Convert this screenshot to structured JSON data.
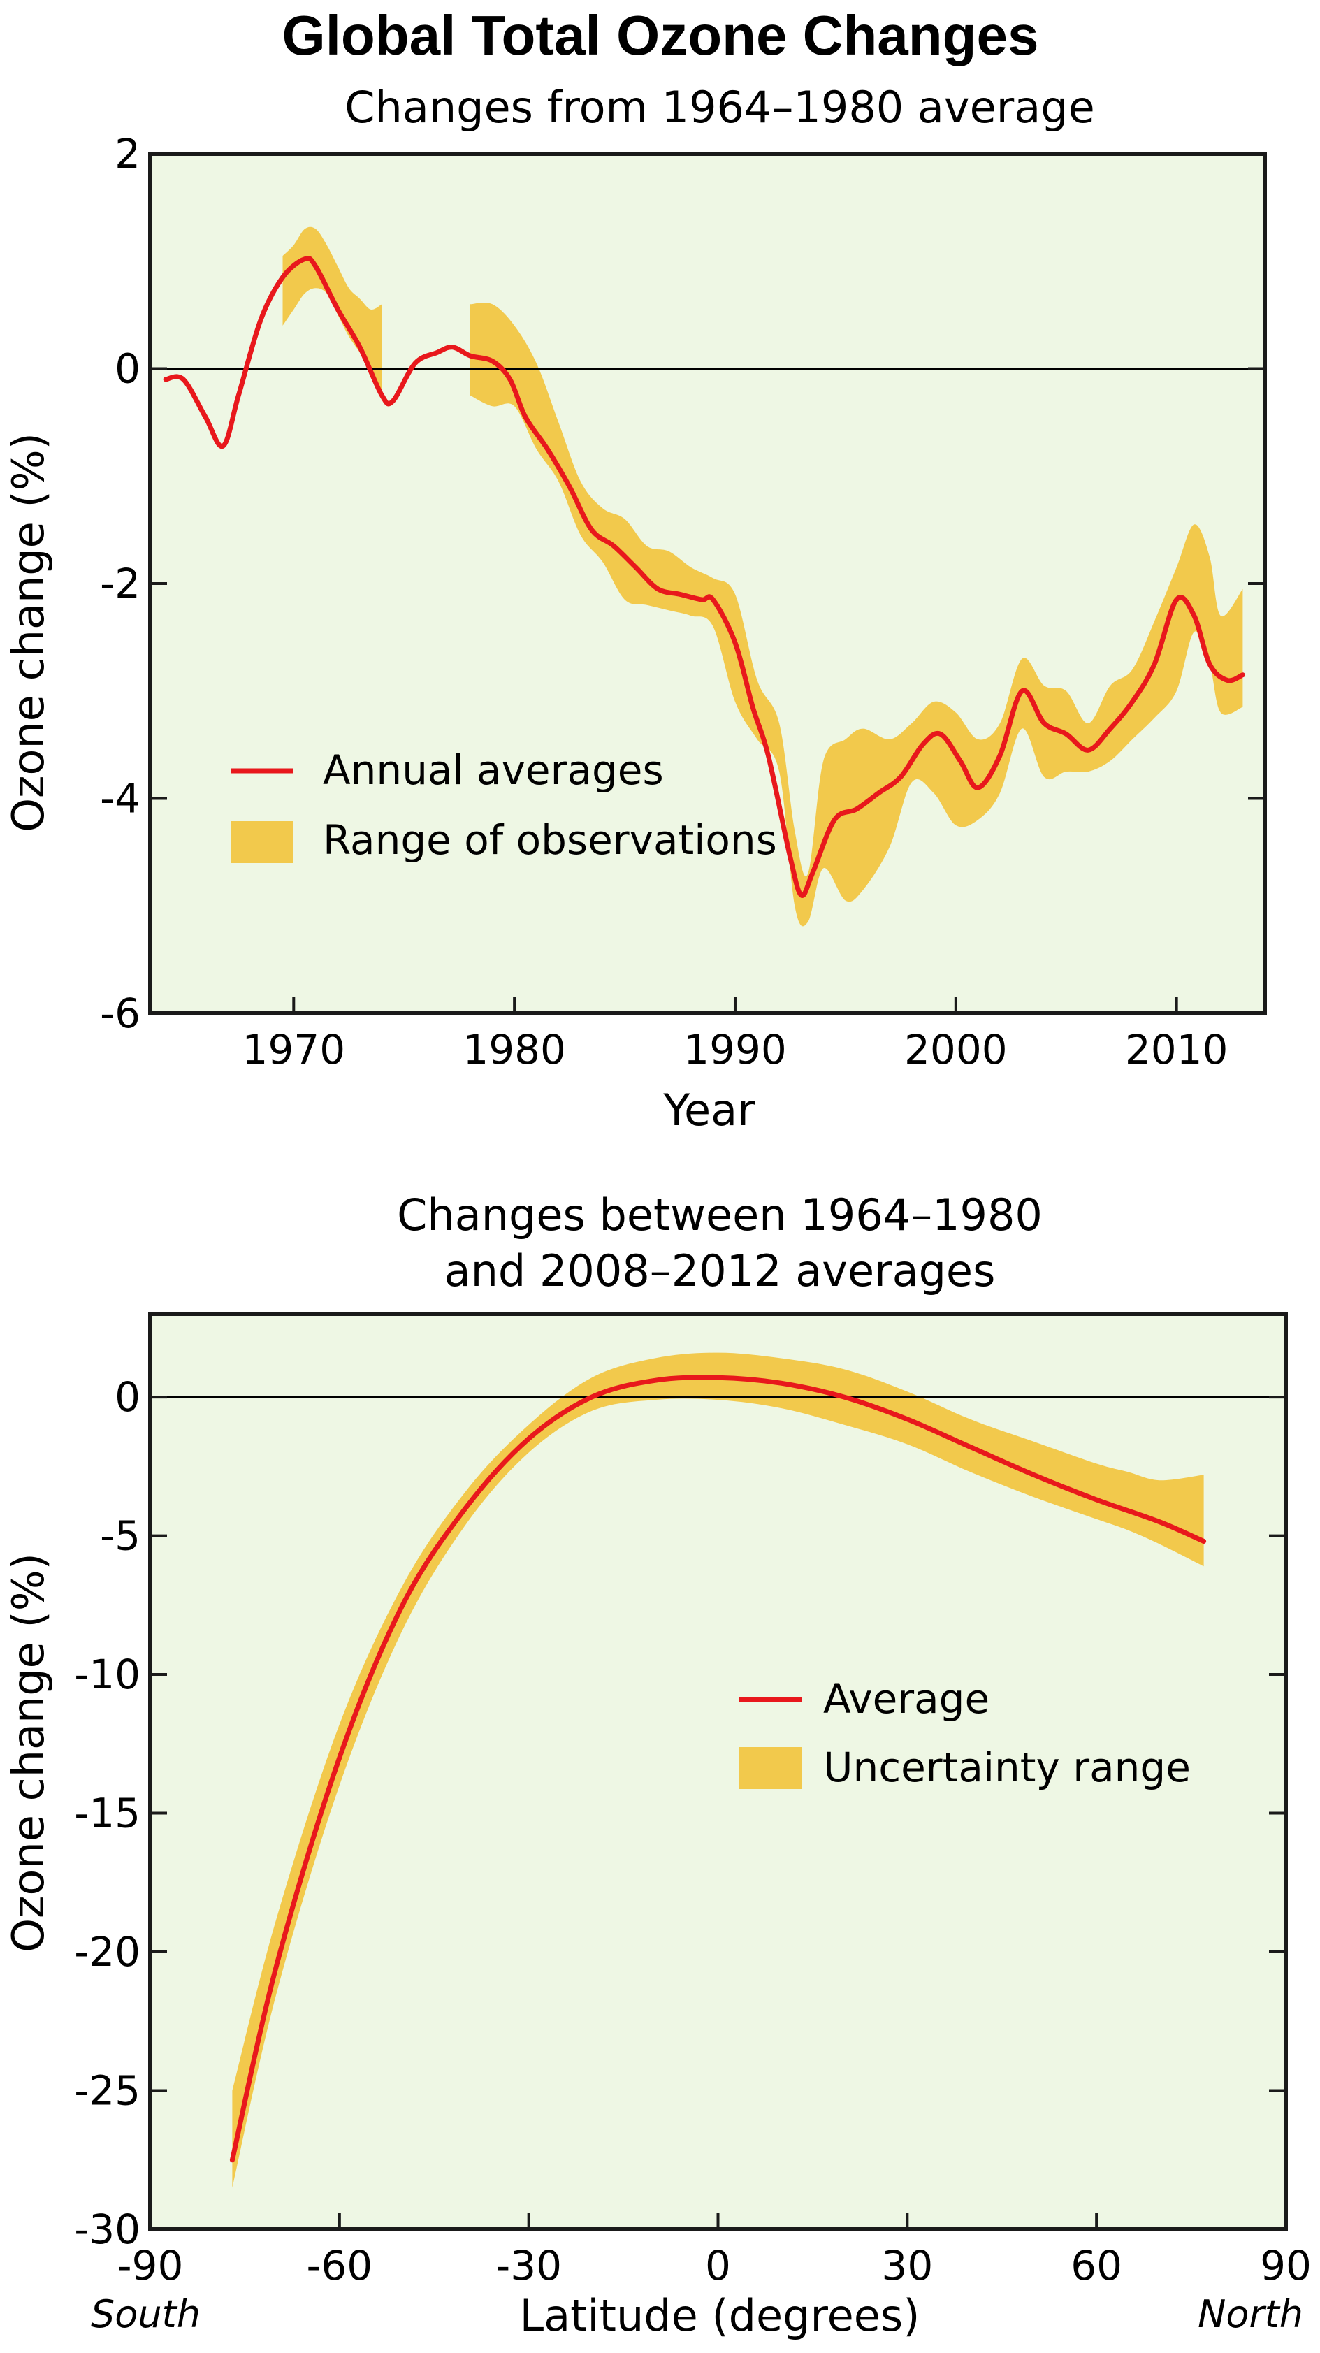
{
  "figure_title": "Global Total Ozone Changes",
  "colors": {
    "background": "#ffffff",
    "plot_bg": "#eef7e4",
    "line": "#e8181c",
    "band": "#f2c94c",
    "frame": "#1a1a1a"
  },
  "chart_data": [
    {
      "type": "line",
      "title": "Changes from 1964–1980 average",
      "xlabel": "Year",
      "ylabel": "Ozone change (%)",
      "xlim": [
        1963.5,
        2014
      ],
      "ylim": [
        -6,
        2
      ],
      "xticks": [
        1970,
        1980,
        1990,
        2000,
        2010
      ],
      "xtick_labels": [
        "1970",
        "1980",
        "1990",
        "2000",
        "2010"
      ],
      "yticks": [
        2,
        0,
        -2,
        -4,
        -6
      ],
      "ytick_labels": [
        "2",
        "0",
        "-2",
        "-4",
        "-6"
      ],
      "grid": false,
      "legend_position": "lower-left",
      "series": [
        {
          "name": "Annual averages",
          "x": [
            1964.2,
            1965,
            1966,
            1966.8,
            1967.5,
            1968.5,
            1969.5,
            1970.5,
            1971,
            1972,
            1973,
            1974,
            1974.5,
            1975.5,
            1976.5,
            1977.2,
            1978,
            1979,
            1979.8,
            1980.5,
            1981.5,
            1982.5,
            1983.5,
            1984.5,
            1985.5,
            1986.5,
            1987.5,
            1988.5,
            1989,
            1990,
            1990.8,
            1991.5,
            1992.5,
            1993,
            1993.5,
            1994.5,
            1995.5,
            1996.5,
            1997.5,
            1998.5,
            1999.3,
            2000.2,
            2001,
            2002,
            2003,
            2004,
            2005,
            2006,
            2007,
            2008,
            2009,
            2010,
            2010.8,
            2011.5,
            2012.3,
            2013
          ],
          "values": [
            -0.1,
            -0.1,
            -0.45,
            -0.72,
            -0.25,
            0.45,
            0.85,
            1.02,
            0.95,
            0.55,
            0.2,
            -0.25,
            -0.3,
            0.05,
            0.15,
            0.2,
            0.12,
            0.07,
            -0.1,
            -0.45,
            -0.75,
            -1.1,
            -1.5,
            -1.65,
            -1.85,
            -2.05,
            -2.1,
            -2.15,
            -2.15,
            -2.55,
            -3.15,
            -3.6,
            -4.55,
            -4.9,
            -4.7,
            -4.2,
            -4.1,
            -3.95,
            -3.8,
            -3.5,
            -3.4,
            -3.65,
            -3.9,
            -3.6,
            -3.0,
            -3.3,
            -3.4,
            -3.55,
            -3.35,
            -3.1,
            -2.75,
            -2.15,
            -2.3,
            -2.75,
            -2.9,
            -2.85
          ]
        },
        {
          "name": "Range of observations",
          "segments": [
            {
              "x": [
                1969.5,
                1970,
                1970.5,
                1971,
                1971.5,
                1972,
                1972.5,
                1973,
                1973.5,
                1974
              ],
              "upper": [
                1.05,
                1.15,
                1.3,
                1.3,
                1.15,
                0.95,
                0.75,
                0.65,
                0.55,
                0.6
              ],
              "lower": [
                0.4,
                0.55,
                0.7,
                0.75,
                0.7,
                0.5,
                0.3,
                0.15,
                0.0,
                -0.3
              ]
            },
            {
              "x": [
                1978,
                1979,
                1980,
                1981,
                1982,
                1983,
                1984,
                1985,
                1986,
                1987,
                1988,
                1989,
                1990,
                1991,
                1992,
                1992.7,
                1993.3,
                1994,
                1995,
                1995.8,
                1997,
                1998,
                1999,
                2000,
                2001,
                2002,
                2003,
                2004,
                2005,
                2006,
                2007,
                2008,
                2009,
                2010,
                2010.8,
                2011.5,
                2012,
                2013
              ],
              "upper": [
                0.6,
                0.6,
                0.4,
                0.05,
                -0.5,
                -1.05,
                -1.3,
                -1.4,
                -1.65,
                -1.7,
                -1.85,
                -1.95,
                -2.1,
                -2.9,
                -3.3,
                -4.3,
                -4.7,
                -3.65,
                -3.45,
                -3.35,
                -3.45,
                -3.3,
                -3.1,
                -3.2,
                -3.45,
                -3.3,
                -2.7,
                -2.95,
                -3.0,
                -3.3,
                -2.95,
                -2.8,
                -2.35,
                -1.85,
                -1.45,
                -1.75,
                -2.3,
                -2.05
              ],
              "lower": [
                -0.25,
                -0.35,
                -0.35,
                -0.75,
                -1.05,
                -1.55,
                -1.8,
                -2.15,
                -2.2,
                -2.25,
                -2.3,
                -2.4,
                -3.1,
                -3.45,
                -3.75,
                -5.0,
                -5.15,
                -4.65,
                -4.95,
                -4.85,
                -4.45,
                -3.85,
                -3.95,
                -4.25,
                -4.2,
                -3.95,
                -3.35,
                -3.8,
                -3.75,
                -3.75,
                -3.65,
                -3.45,
                -3.25,
                -3.0,
                -2.45,
                -2.75,
                -3.2,
                -3.15
              ]
            }
          ]
        }
      ]
    },
    {
      "type": "line",
      "title": "Changes between 1964–1980\nand 2008–2012 averages",
      "xlabel": "Latitude (degrees)",
      "ylabel": "Ozone change (%)",
      "xlim": [
        -90,
        90
      ],
      "ylim": [
        -30,
        3
      ],
      "xticks": [
        -90,
        -60,
        -30,
        0,
        30,
        60,
        90
      ],
      "xtick_labels": [
        "-90",
        "-60",
        "-30",
        "0",
        "30",
        "60",
        "90"
      ],
      "yticks": [
        0,
        -5,
        -10,
        -15,
        -20,
        -25,
        -30
      ],
      "ytick_labels": [
        "0",
        "-5",
        "-10",
        "-15",
        "-20",
        "-25",
        "-30"
      ],
      "grid": false,
      "legend_position": "center-right",
      "x_annotations": [
        "South",
        "North"
      ],
      "series": [
        {
          "name": "Average",
          "x": [
            -77,
            -70,
            -60,
            -50,
            -40,
            -30,
            -20,
            -10,
            0,
            10,
            20,
            30,
            40,
            50,
            60,
            70,
            77
          ],
          "values": [
            -27.5,
            -20.5,
            -13.0,
            -7.5,
            -4.0,
            -1.5,
            0.0,
            0.6,
            0.7,
            0.5,
            0.0,
            -0.8,
            -1.8,
            -2.8,
            -3.7,
            -4.5,
            -5.2
          ]
        },
        {
          "name": "Uncertainty range",
          "x": [
            -77,
            -70,
            -60,
            -50,
            -40,
            -30,
            -20,
            -10,
            0,
            10,
            20,
            30,
            40,
            50,
            60,
            65,
            70,
            77
          ],
          "upper": [
            -25.0,
            -18.8,
            -11.8,
            -6.8,
            -3.4,
            -1.0,
            0.7,
            1.4,
            1.6,
            1.4,
            1.0,
            0.2,
            -0.8,
            -1.6,
            -2.4,
            -2.7,
            -3.0,
            -2.8
          ],
          "lower": [
            -28.5,
            -21.5,
            -14.0,
            -8.4,
            -4.6,
            -2.0,
            -0.5,
            -0.1,
            -0.1,
            -0.4,
            -1.0,
            -1.7,
            -2.7,
            -3.6,
            -4.4,
            -4.8,
            -5.3,
            -6.1
          ]
        }
      ]
    }
  ]
}
